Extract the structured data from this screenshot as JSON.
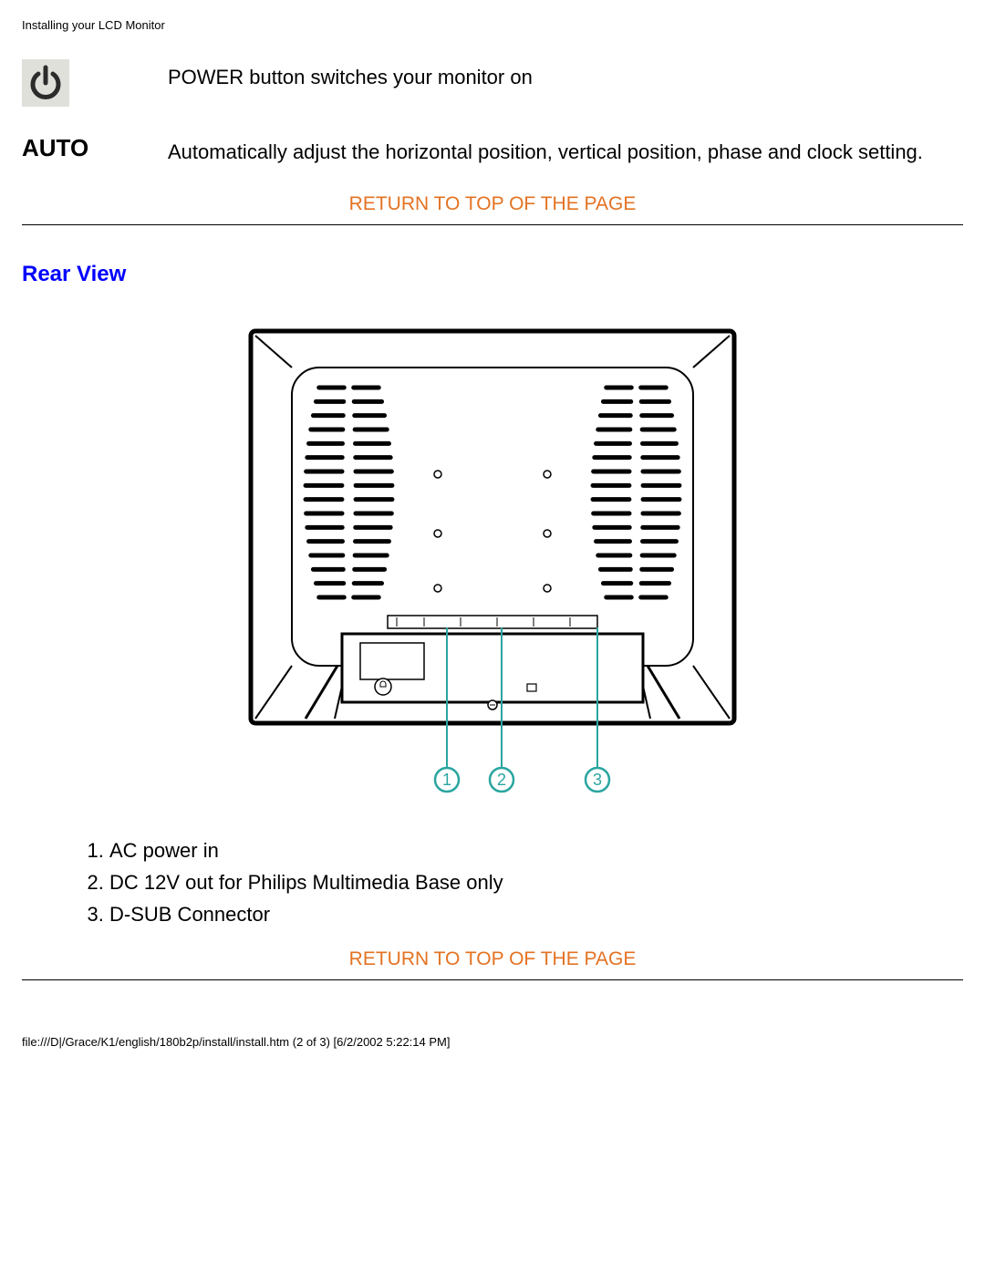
{
  "header": "Installing your LCD Monitor",
  "features": {
    "power_text": "POWER button switches your monitor on",
    "auto_label": "AUTO",
    "auto_text": "Automatically adjust the horizontal position, vertical position, phase and clock setting."
  },
  "return_link": "RETURN TO TOP OF THE PAGE",
  "section_heading": "Rear View",
  "diagram": {
    "outline_color": "#000000",
    "callout_color": "#2aa5a0",
    "bg": "#ffffff",
    "callouts": [
      "1",
      "2",
      "3"
    ]
  },
  "list": {
    "items": [
      "AC power in",
      "DC 12V out for Philips Multimedia Base only",
      "D-SUB Connector"
    ]
  },
  "footer": "file:///D|/Grace/K1/english/180b2p/install/install.htm (2 of 3) [6/2/2002 5:22:14 PM]",
  "colors": {
    "link": "#e37222",
    "heading": "#0000ff",
    "text": "#000000"
  }
}
